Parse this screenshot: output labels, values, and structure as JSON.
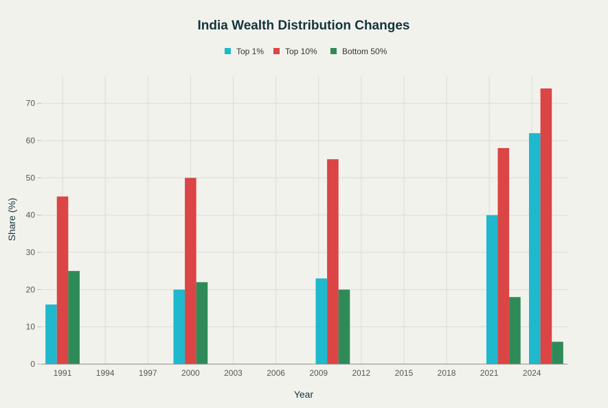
{
  "chart_data": {
    "type": "bar",
    "title": "India Wealth Distribution Changes",
    "xlabel": "Year",
    "ylabel": "Share (%)",
    "x": [
      1991,
      2000,
      2010,
      2022,
      2025
    ],
    "series": [
      {
        "name": "Top 1%",
        "color": "#1fb8cd",
        "values": [
          16,
          20,
          23,
          40,
          62
        ]
      },
      {
        "name": "Top 10%",
        "color": "#db4545",
        "values": [
          45,
          50,
          55,
          58,
          74
        ]
      },
      {
        "name": "Bottom 50%",
        "color": "#2e8b57",
        "values": [
          25,
          22,
          20,
          18,
          6
        ]
      }
    ],
    "xticks": [
      1991,
      1994,
      1997,
      2000,
      2003,
      2006,
      2009,
      2012,
      2015,
      2018,
      2021,
      2024
    ],
    "yticks": [
      0,
      10,
      20,
      30,
      40,
      50,
      60,
      70
    ],
    "xlim": [
      1989.5,
      2026.5
    ],
    "ylim": [
      0,
      77.5
    ],
    "grid": true,
    "legend": "top-center"
  }
}
